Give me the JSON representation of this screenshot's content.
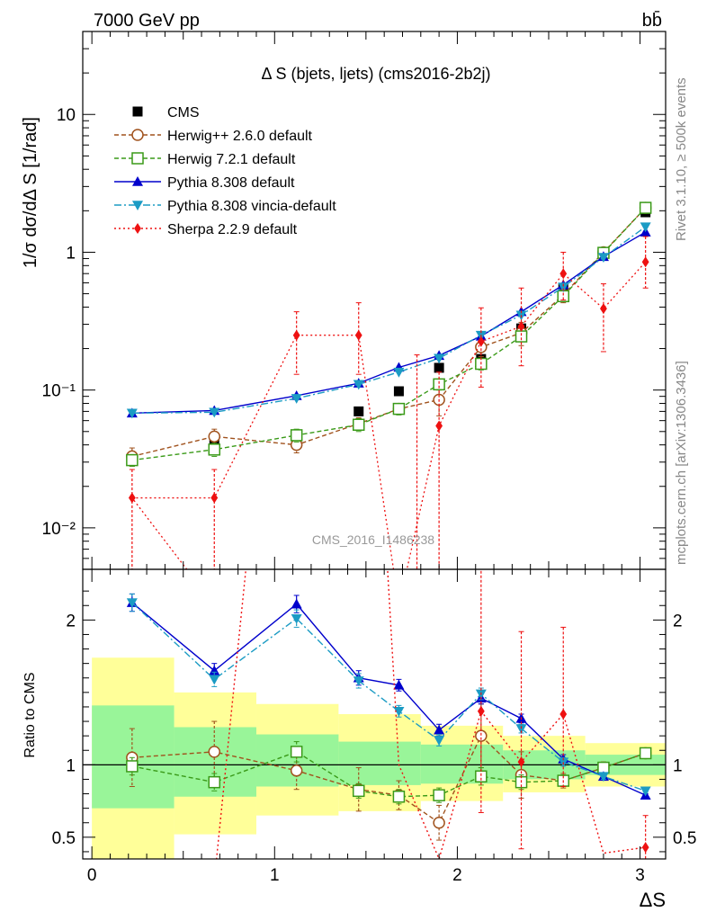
{
  "header": {
    "energy_label": "7000 GeV pp",
    "process_label": "bb̄"
  },
  "plot_title": "Δ S (bjets, ljets) (cms2016-2b2j)",
  "side_labels": {
    "rivet": "Rivet 3.1.10, ≥ 500k events",
    "mcplots": "mcplots.cern.ch [arXiv:1306.3436]"
  },
  "watermark": "CMS_2016_I1486238",
  "chart_data": [
    {
      "type": "scatter",
      "panel": "main",
      "ylabel": "1/σ dσ/dΔ S [1/rad]",
      "yscale": "log",
      "ylim": [
        0.005,
        40
      ],
      "xlim": [
        -0.05,
        3.14
      ],
      "y_ticks": [
        {
          "value": 0.01,
          "label": "10⁻²"
        },
        {
          "value": 0.1,
          "label": "10⁻¹"
        },
        {
          "value": 1,
          "label": "1"
        },
        {
          "value": 10,
          "label": "10"
        }
      ],
      "legend_position": "top-left",
      "x": [
        0.22,
        0.67,
        1.12,
        1.46,
        1.68,
        1.9,
        2.13,
        2.35,
        2.58,
        2.8,
        3.03
      ],
      "series": [
        {
          "name": "CMS",
          "color": "#000000",
          "marker": "square-filled",
          "dash": "none",
          "values": [
            0.032,
            0.043,
            0.043,
            0.07,
            0.098,
            0.145,
            0.168,
            0.28,
            0.55,
            1.0,
            1.95
          ]
        },
        {
          "name": "Herwig++ 2.6.0 default",
          "color": "#a0521d",
          "marker": "circle-open",
          "dash": "5,3",
          "values": [
            0.033,
            0.046,
            0.04,
            0.057,
            0.073,
            0.085,
            0.205,
            0.26,
            0.49,
            1.0,
            2.1
          ],
          "errors": [
            0.005,
            0.006,
            0.005,
            0.006,
            0.006,
            0.02,
            0.03,
            0.05,
            0.06,
            0.05,
            0.1
          ]
        },
        {
          "name": "Herwig 7.2.1 default",
          "color": "#3a9a18",
          "marker": "square-open",
          "dash": "5,3",
          "values": [
            0.031,
            0.037,
            0.047,
            0.056,
            0.073,
            0.11,
            0.155,
            0.245,
            0.48,
            0.99,
            2.1
          ],
          "errors": [
            0.003,
            0.004,
            0.005,
            0.006,
            0.007,
            0.01,
            0.015,
            0.02,
            0.04,
            0.05,
            0.1
          ]
        },
        {
          "name": "Pythia 8.308 default",
          "color": "#0000cc",
          "marker": "triangle-up-filled",
          "dash": "none",
          "values": [
            0.068,
            0.071,
            0.091,
            0.112,
            0.146,
            0.178,
            0.246,
            0.37,
            0.58,
            0.93,
            1.4
          ]
        },
        {
          "name": "Pythia 8.308 vincia-default",
          "color": "#1b9bc4",
          "marker": "triangle-down-filled",
          "dash": "8,3,2,3",
          "values": [
            0.068,
            0.069,
            0.087,
            0.11,
            0.135,
            0.17,
            0.25,
            0.35,
            0.56,
            0.92,
            1.53
          ]
        },
        {
          "name": "Sherpa 2.2.9 default",
          "color": "#ee1111",
          "marker": "diamond-filled",
          "dash": "2,3",
          "values": [
            0.0165,
            0.0165,
            0.25,
            0.25,
            null,
            0.055,
            0.225,
            0.29,
            0.7,
            0.39,
            0.85
          ],
          "err_low": [
            0.012,
            0.012,
            0.12,
            0.12,
            null,
            0.05,
            0.12,
            0.14,
            0.25,
            0.2,
            0.3
          ],
          "err_high": [
            0.01,
            0.01,
            0.12,
            0.18,
            null,
            0.08,
            0.17,
            0.26,
            0.3,
            0.2,
            0.45
          ]
        }
      ]
    },
    {
      "type": "scatter",
      "panel": "ratio",
      "ylabel": "Ratio to CMS",
      "xlabel": "ΔS",
      "ylim": [
        0.35,
        2.35
      ],
      "xlim": [
        -0.05,
        3.14
      ],
      "x_ticks": [
        0,
        1,
        2,
        3
      ],
      "y_ticks": [
        0.5,
        1,
        2
      ],
      "bands": {
        "edges": [
          0.0,
          0.45,
          0.9,
          1.35,
          1.8,
          2.25,
          2.7,
          3.14
        ],
        "green": [
          [
            0.7,
            1.41
          ],
          [
            0.78,
            1.26
          ],
          [
            0.85,
            1.21
          ],
          [
            0.86,
            1.16
          ],
          [
            0.87,
            1.14
          ],
          [
            0.9,
            1.1
          ],
          [
            0.93,
            1.07
          ]
        ],
        "yellow": [
          [
            0.35,
            1.74
          ],
          [
            0.52,
            1.5
          ],
          [
            0.65,
            1.42
          ],
          [
            0.68,
            1.35
          ],
          [
            0.75,
            1.27
          ],
          [
            0.81,
            1.2
          ],
          [
            0.85,
            1.15
          ]
        ]
      },
      "x": [
        0.22,
        0.67,
        1.12,
        1.46,
        1.68,
        1.9,
        2.13,
        2.35,
        2.58,
        2.8,
        3.03
      ],
      "series": [
        {
          "name": "Herwig++ 2.6.0 default",
          "color": "#a0521d",
          "marker": "circle-open",
          "dash": "5,3",
          "values": [
            1.05,
            1.09,
            0.96,
            0.83,
            0.79,
            0.6,
            1.2,
            0.93,
            0.89,
            0.98,
            1.08
          ],
          "errors": [
            0.2,
            0.21,
            0.13,
            0.15,
            0.1,
            0.12,
            0.22,
            0.16,
            0.05,
            0.04,
            0.02
          ]
        },
        {
          "name": "Herwig 7.2.1 default",
          "color": "#3a9a18",
          "marker": "square-open",
          "dash": "5,3",
          "values": [
            0.99,
            0.88,
            1.09,
            0.82,
            0.78,
            0.79,
            0.92,
            0.88,
            0.89,
            0.98,
            1.08
          ],
          "errors": [
            0.06,
            0.06,
            0.07,
            0.05,
            0.05,
            0.05,
            0.06,
            0.05,
            0.04,
            0.03,
            0.02
          ]
        },
        {
          "name": "Pythia 8.308 default",
          "color": "#0000cc",
          "marker": "triangle-up-filled",
          "dash": "none",
          "values": [
            2.12,
            1.65,
            2.11,
            1.6,
            1.55,
            1.24,
            1.46,
            1.32,
            1.04,
            0.92,
            0.79
          ],
          "errors": [
            0.06,
            0.05,
            0.06,
            0.05,
            0.04,
            0.04,
            0.04,
            0.03,
            0.03,
            0.02,
            0.01
          ]
        },
        {
          "name": "Pythia 8.308 vincia-default",
          "color": "#1b9bc4",
          "marker": "triangle-down-filled",
          "dash": "8,3,2,3",
          "values": [
            2.12,
            1.59,
            2.01,
            1.58,
            1.37,
            1.17,
            1.49,
            1.25,
            1.02,
            0.92,
            0.82
          ],
          "errors": [
            0.06,
            0.05,
            0.06,
            0.05,
            0.04,
            0.04,
            0.04,
            0.03,
            0.03,
            0.02,
            0.01
          ]
        },
        {
          "name": "Sherpa 2.2.9 default",
          "color": "#ee1111",
          "marker": "diamond-filled",
          "dash": "2,3",
          "values": [
            null,
            null,
            null,
            null,
            null,
            null,
            1.37,
            1.02,
            1.35,
            null,
            0.43
          ],
          "err_low": [
            null,
            null,
            null,
            null,
            null,
            null,
            0.7,
            0.6,
            0.5,
            null,
            0.2
          ],
          "err_high": [
            null,
            null,
            null,
            null,
            null,
            null,
            1.0,
            0.9,
            0.6,
            null,
            0.22
          ],
          "line_path_values": [
            0.2,
            0.2,
            5.8,
            5.8,
            1.0,
            0.35,
            1.37,
            1.02,
            1.35,
            0.39,
            0.43
          ]
        }
      ]
    }
  ]
}
